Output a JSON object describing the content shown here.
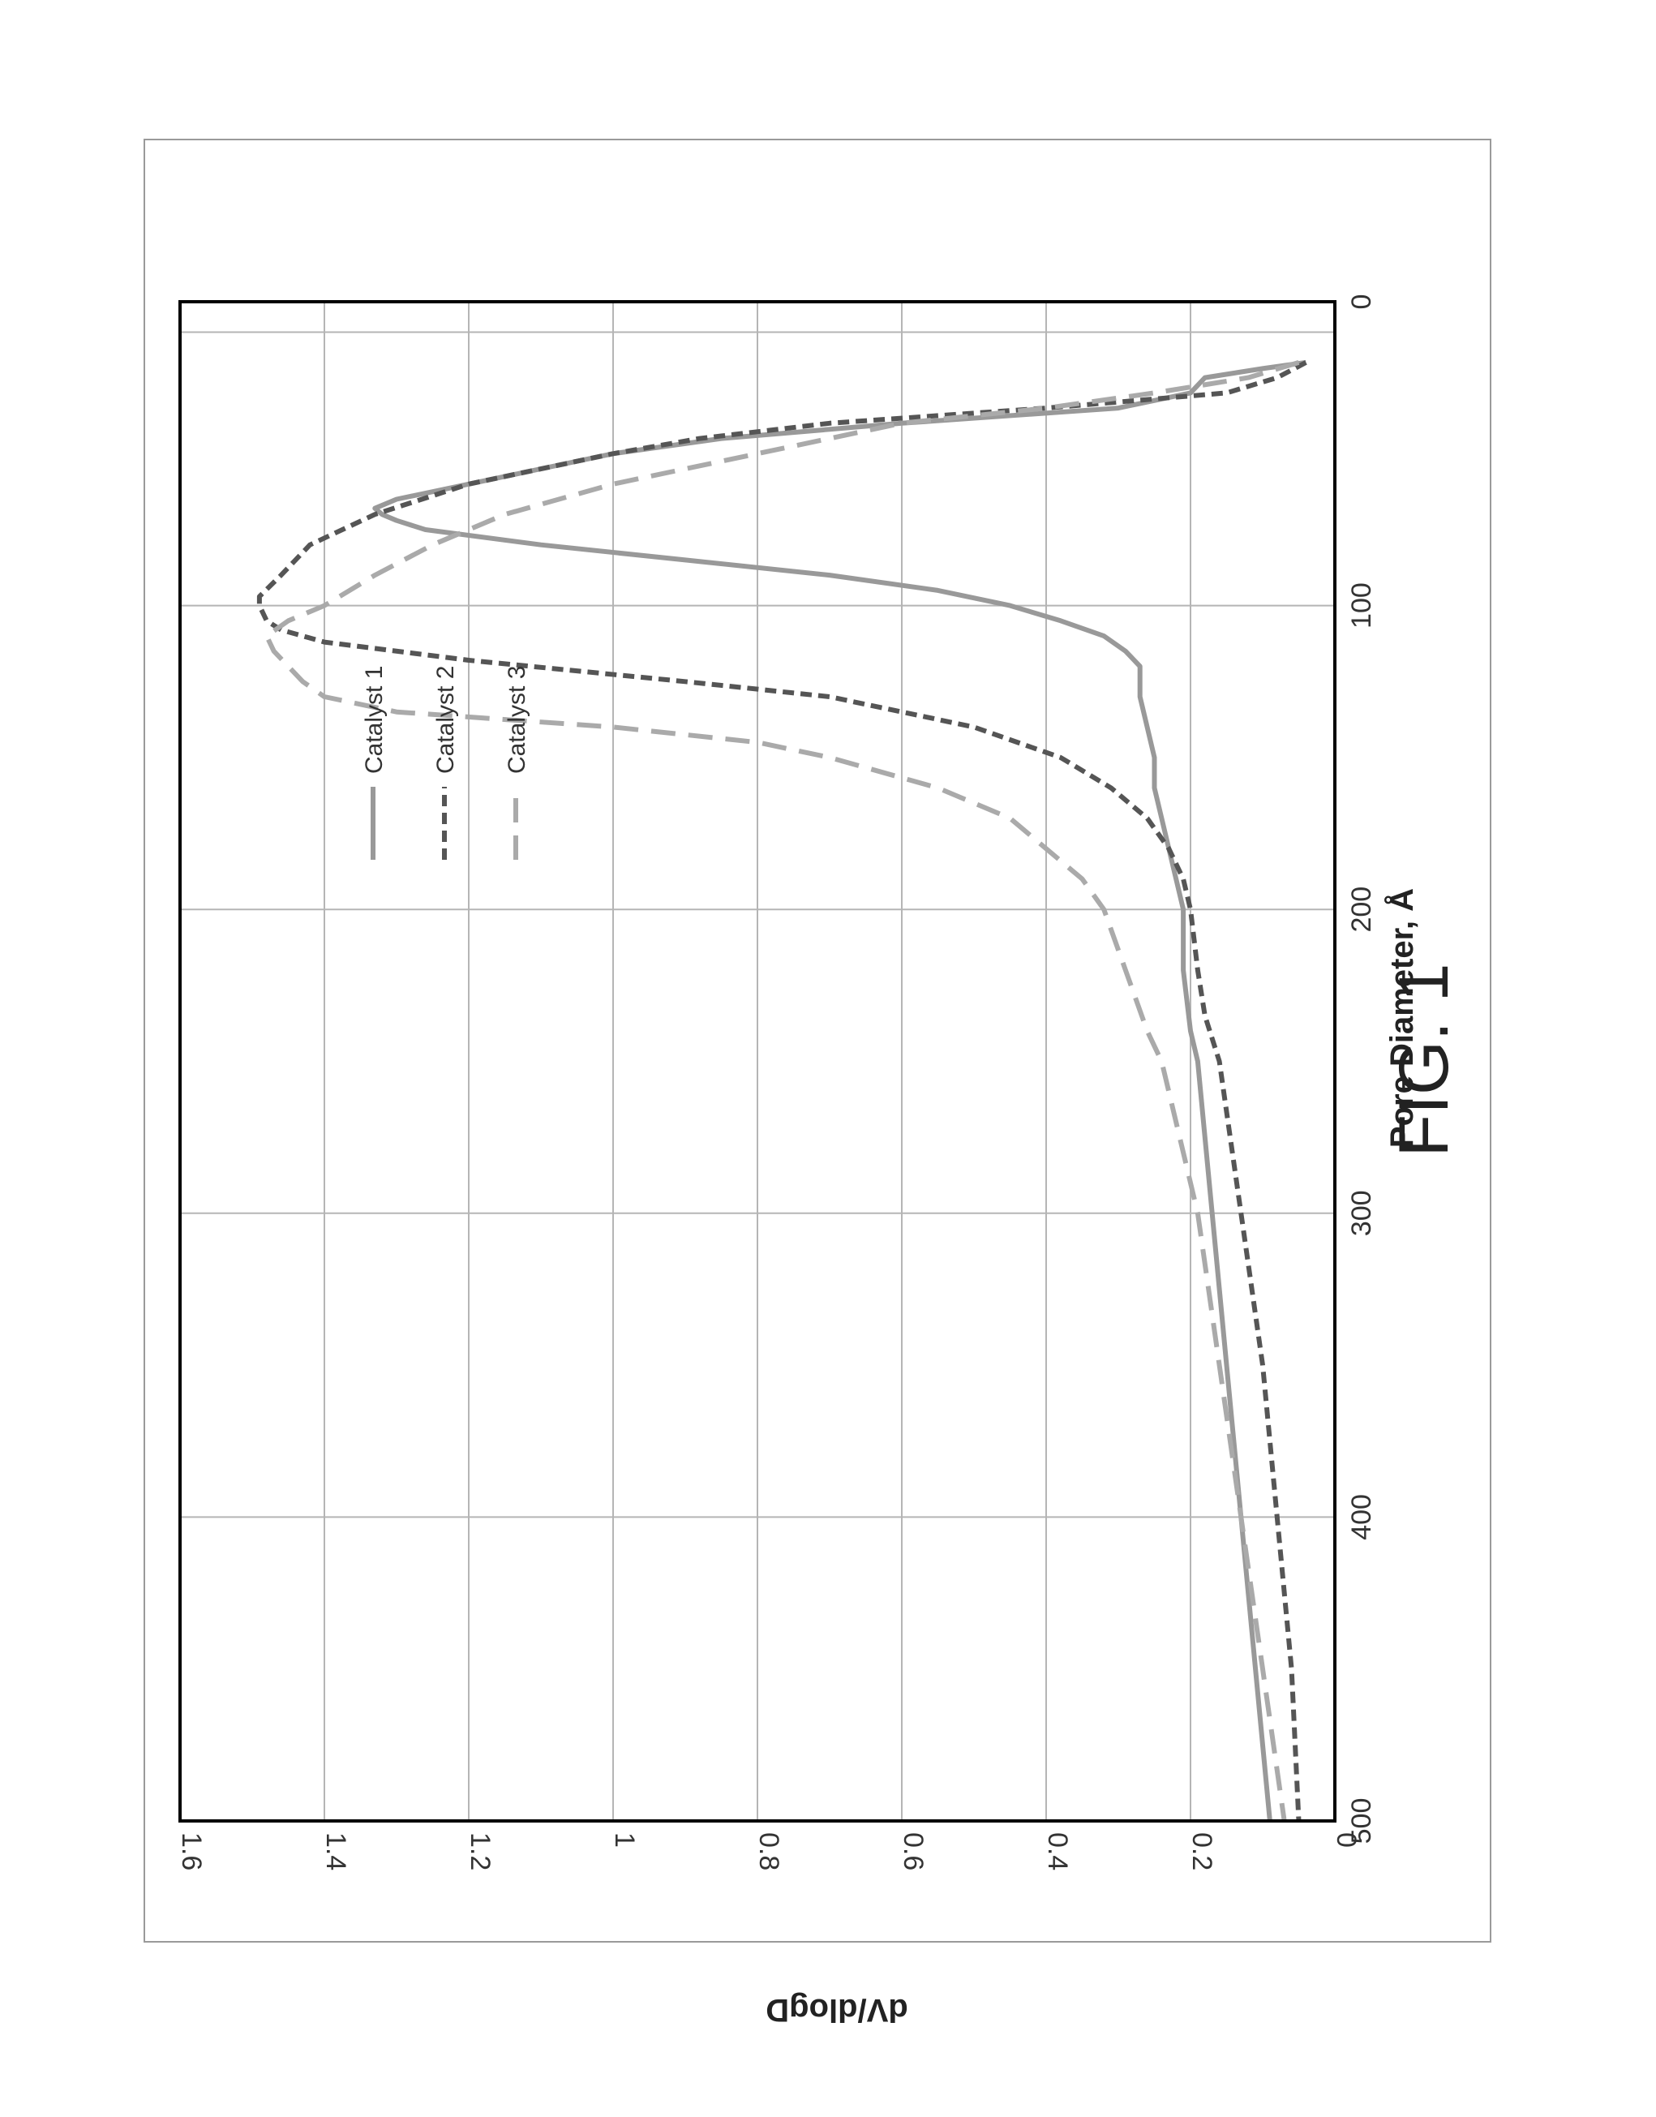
{
  "figure": {
    "caption": "FIG. 1"
  },
  "chart_data": {
    "type": "line",
    "xlabel": "Pore Diameter, Å",
    "ylabel": "dV/dlogD",
    "xlim": [
      0,
      500
    ],
    "ylim": [
      0,
      1.6
    ],
    "x_ticks": [
      "0",
      "100",
      "200",
      "300",
      "400",
      "500"
    ],
    "y_ticks": [
      "0",
      "0.2",
      "0.4",
      "0.6",
      "0.8",
      "1",
      "1.2",
      "1.4",
      "1.6"
    ],
    "grid": true,
    "legend_position": "top-left (rotated)",
    "orientation": "rotated 90° clockwise on page",
    "series": [
      {
        "name": "Catalyst 1",
        "style": "solid",
        "color": "#999999",
        "points": [
          [
            20,
            0.04
          ],
          [
            22,
            0.1
          ],
          [
            25,
            0.18
          ],
          [
            30,
            0.2
          ],
          [
            35,
            0.3
          ],
          [
            40,
            0.6
          ],
          [
            45,
            0.85
          ],
          [
            50,
            1.0
          ],
          [
            55,
            1.1
          ],
          [
            60,
            1.2
          ],
          [
            65,
            1.3
          ],
          [
            68,
            1.33
          ],
          [
            70,
            1.32
          ],
          [
            72,
            1.3
          ],
          [
            75,
            1.26
          ],
          [
            80,
            1.1
          ],
          [
            85,
            0.9
          ],
          [
            90,
            0.7
          ],
          [
            95,
            0.55
          ],
          [
            100,
            0.45
          ],
          [
            105,
            0.38
          ],
          [
            110,
            0.32
          ],
          [
            115,
            0.29
          ],
          [
            120,
            0.27
          ],
          [
            130,
            0.27
          ],
          [
            140,
            0.26
          ],
          [
            150,
            0.25
          ],
          [
            160,
            0.25
          ],
          [
            170,
            0.24
          ],
          [
            180,
            0.23
          ],
          [
            190,
            0.22
          ],
          [
            200,
            0.21
          ],
          [
            220,
            0.21
          ],
          [
            240,
            0.2
          ],
          [
            250,
            0.19
          ],
          [
            300,
            0.17
          ],
          [
            350,
            0.15
          ],
          [
            400,
            0.13
          ],
          [
            450,
            0.11
          ],
          [
            500,
            0.09
          ]
        ]
      },
      {
        "name": "Catalyst 2",
        "style": "dashed",
        "color": "#555555",
        "points": [
          [
            20,
            0.04
          ],
          [
            25,
            0.08
          ],
          [
            30,
            0.15
          ],
          [
            35,
            0.4
          ],
          [
            40,
            0.7
          ],
          [
            45,
            0.88
          ],
          [
            50,
            1.0
          ],
          [
            60,
            1.2
          ],
          [
            70,
            1.33
          ],
          [
            80,
            1.42
          ],
          [
            90,
            1.46
          ],
          [
            97,
            1.49
          ],
          [
            100,
            1.49
          ],
          [
            105,
            1.48
          ],
          [
            108,
            1.46
          ],
          [
            112,
            1.4
          ],
          [
            118,
            1.2
          ],
          [
            125,
            0.9
          ],
          [
            130,
            0.7
          ],
          [
            140,
            0.5
          ],
          [
            150,
            0.38
          ],
          [
            160,
            0.31
          ],
          [
            170,
            0.26
          ],
          [
            180,
            0.23
          ],
          [
            190,
            0.21
          ],
          [
            200,
            0.2
          ],
          [
            220,
            0.19
          ],
          [
            235,
            0.18
          ],
          [
            250,
            0.16
          ],
          [
            300,
            0.13
          ],
          [
            350,
            0.1
          ],
          [
            400,
            0.08
          ],
          [
            450,
            0.06
          ],
          [
            500,
            0.05
          ]
        ]
      },
      {
        "name": "Catalyst 3",
        "style": "long-dash",
        "color": "#aaaaaa",
        "points": [
          [
            20,
            0.05
          ],
          [
            25,
            0.12
          ],
          [
            30,
            0.25
          ],
          [
            35,
            0.4
          ],
          [
            40,
            0.6
          ],
          [
            50,
            0.8
          ],
          [
            60,
            1.0
          ],
          [
            70,
            1.15
          ],
          [
            80,
            1.25
          ],
          [
            90,
            1.33
          ],
          [
            100,
            1.4
          ],
          [
            105,
            1.45
          ],
          [
            110,
            1.48
          ],
          [
            115,
            1.47
          ],
          [
            120,
            1.45
          ],
          [
            125,
            1.43
          ],
          [
            130,
            1.4
          ],
          [
            135,
            1.3
          ],
          [
            140,
            1.0
          ],
          [
            145,
            0.8
          ],
          [
            150,
            0.7
          ],
          [
            160,
            0.55
          ],
          [
            170,
            0.45
          ],
          [
            180,
            0.4
          ],
          [
            190,
            0.35
          ],
          [
            200,
            0.32
          ],
          [
            220,
            0.29
          ],
          [
            240,
            0.26
          ],
          [
            250,
            0.24
          ],
          [
            300,
            0.19
          ],
          [
            350,
            0.16
          ],
          [
            400,
            0.13
          ],
          [
            450,
            0.1
          ],
          [
            500,
            0.07
          ]
        ]
      }
    ]
  }
}
